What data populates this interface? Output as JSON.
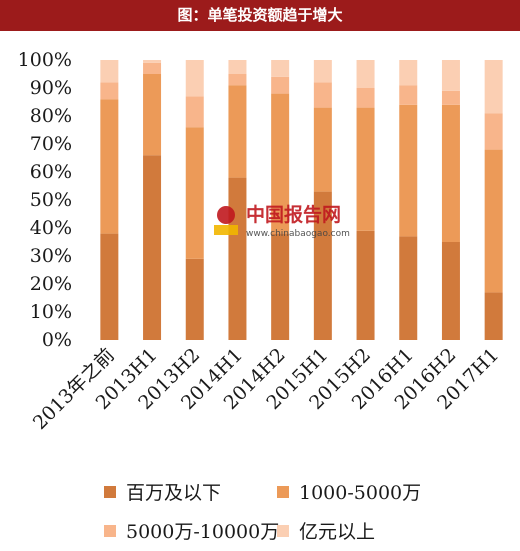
{
  "header": {
    "title": "图：单笔投资额趋于增大"
  },
  "watermark": {
    "name": "中国报告网",
    "url": "www.chinabaogao.com"
  },
  "chart_data": {
    "type": "bar",
    "stacked": true,
    "percent": true,
    "title": "图：单笔投资额趋于增大",
    "categories": [
      "2013年之前",
      "2013H1",
      "2013H2",
      "2014H1",
      "2014H2",
      "2015H1",
      "2015H2",
      "2016H1",
      "2016H2",
      "2017H1"
    ],
    "y_ticks": [
      "0%",
      "10%",
      "20%",
      "30%",
      "40%",
      "50%",
      "60%",
      "70%",
      "80%",
      "90%",
      "100%"
    ],
    "ylim": [
      0,
      100
    ],
    "series": [
      {
        "name": "百万及以下",
        "color": "#d17a3c",
        "values": [
          38,
          66,
          29,
          58,
          38,
          53,
          39,
          37,
          35,
          17
        ]
      },
      {
        "name": "1000-5000万",
        "color": "#ec9a58",
        "values": [
          48,
          29,
          47,
          33,
          50,
          30,
          44,
          47,
          49,
          51
        ]
      },
      {
        "name": "5000万-10000万",
        "color": "#f8b58b",
        "values": [
          6,
          4,
          11,
          4,
          6,
          9,
          7,
          7,
          5,
          13
        ]
      },
      {
        "name": "亿元以上",
        "color": "#fbcfb3",
        "values": [
          8,
          1,
          13,
          5,
          6,
          8,
          10,
          9,
          11,
          19
        ]
      }
    ],
    "legend_position": "bottom",
    "grid": false
  }
}
